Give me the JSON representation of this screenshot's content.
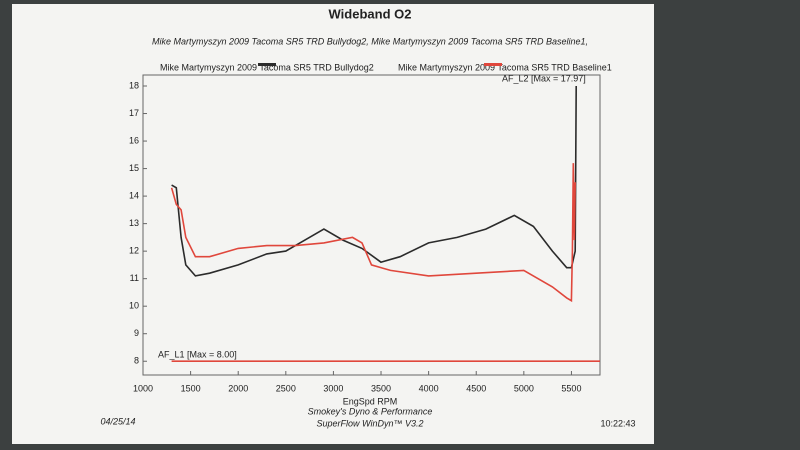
{
  "chart_data": {
    "type": "line",
    "title": "Wideband O2",
    "subtitle": "Mike Martymyszyn 2009 Tacoma SR5 TRD Bullydog2, Mike Martymyszyn 2009 Tacoma SR5 TRD Baseline1,",
    "x_label": "EngSpd RPM",
    "xlim": [
      1000,
      5800
    ],
    "xticks": [
      1000,
      1500,
      2000,
      2500,
      3000,
      3500,
      4000,
      4500,
      5000,
      5500
    ],
    "ylim": [
      7.5,
      18.4
    ],
    "yticks": [
      8,
      9,
      10,
      11,
      12,
      13,
      14,
      15,
      16,
      17,
      18
    ],
    "series": [
      {
        "name": "Mike Martymyszyn 2009 Tacoma SR5 TRD Bullydog2",
        "color": "#2b2b2b",
        "x": [
          1300,
          1350,
          1400,
          1450,
          1550,
          1700,
          2000,
          2300,
          2500,
          2700,
          2900,
          3100,
          3300,
          3500,
          3700,
          4000,
          4300,
          4600,
          4900,
          5100,
          5300,
          5450,
          5500,
          5540,
          5550
        ],
        "values": [
          14.4,
          14.3,
          12.5,
          11.5,
          11.1,
          11.2,
          11.5,
          11.9,
          12.0,
          12.4,
          12.8,
          12.4,
          12.1,
          11.6,
          11.8,
          12.3,
          12.5,
          12.8,
          13.3,
          12.9,
          12.0,
          11.4,
          11.4,
          12.0,
          18.0
        ]
      },
      {
        "name": "Mike Martymyszyn 2009 Tacoma SR5 TRD Baseline1",
        "color": "#e0473c",
        "x": [
          1300,
          1350,
          1400,
          1450,
          1550,
          1700,
          2000,
          2300,
          2600,
          2900,
          3200,
          3300,
          3400,
          3600,
          4000,
          4500,
          5000,
          5300,
          5450,
          5500,
          5510,
          5520,
          5530,
          5540
        ],
        "values": [
          14.3,
          13.7,
          13.5,
          12.5,
          11.8,
          11.8,
          12.1,
          12.2,
          12.2,
          12.3,
          12.5,
          12.3,
          11.5,
          11.3,
          11.1,
          11.2,
          11.3,
          10.7,
          10.3,
          10.2,
          12.0,
          15.2,
          12.4,
          14.5
        ]
      }
    ],
    "limit_line": {
      "label": "AF_L1  [Max = 8.00]",
      "color": "#e0473c",
      "x": [
        1300,
        5800
      ],
      "values": [
        8,
        8
      ]
    },
    "annotation": "AF_L2  [Max = 17.97]",
    "date": "04/25/14",
    "footer": [
      "Smokey's Dyno & Performance",
      "SuperFlow WinDyn™ V3.2"
    ],
    "time": "10:22:43"
  }
}
